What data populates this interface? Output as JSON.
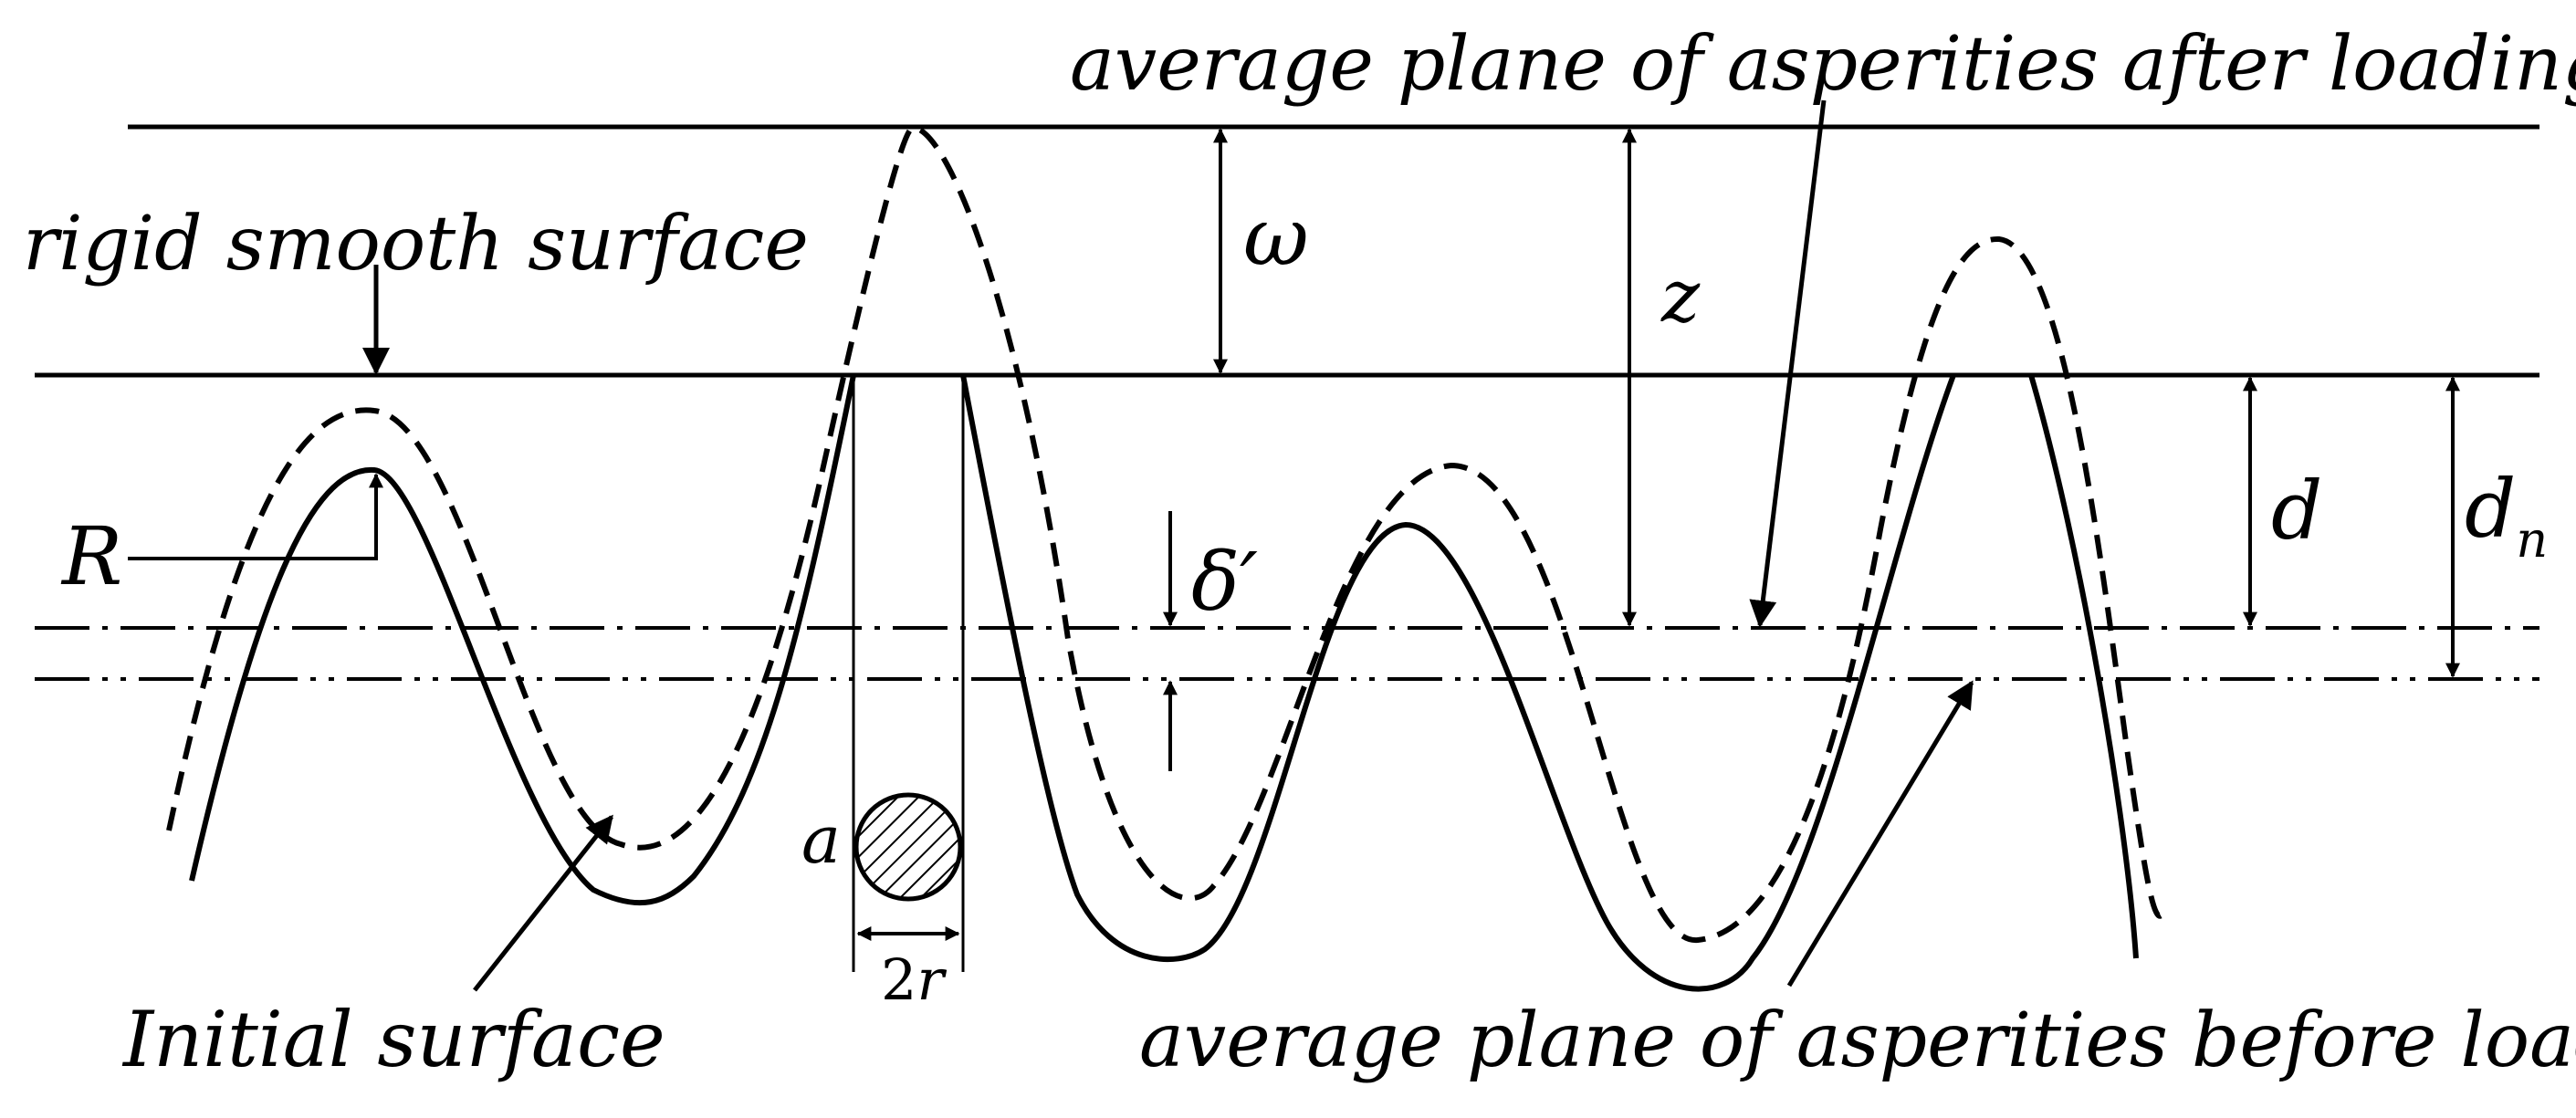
{
  "labels": {
    "avg_after": "average plane of asperities after loading",
    "rigid": "rigid smooth surface",
    "initial": "Initial surface",
    "avg_before": "average plane of asperities before loading",
    "omega": "ω",
    "z": "z",
    "d": "d",
    "dn_base": "d",
    "dn_sub": "n",
    "R": "R",
    "delta": "δ′",
    "a": "a",
    "two_r": "2r"
  },
  "colors": {
    "ink": "#000000",
    "background": "#ffffff"
  }
}
